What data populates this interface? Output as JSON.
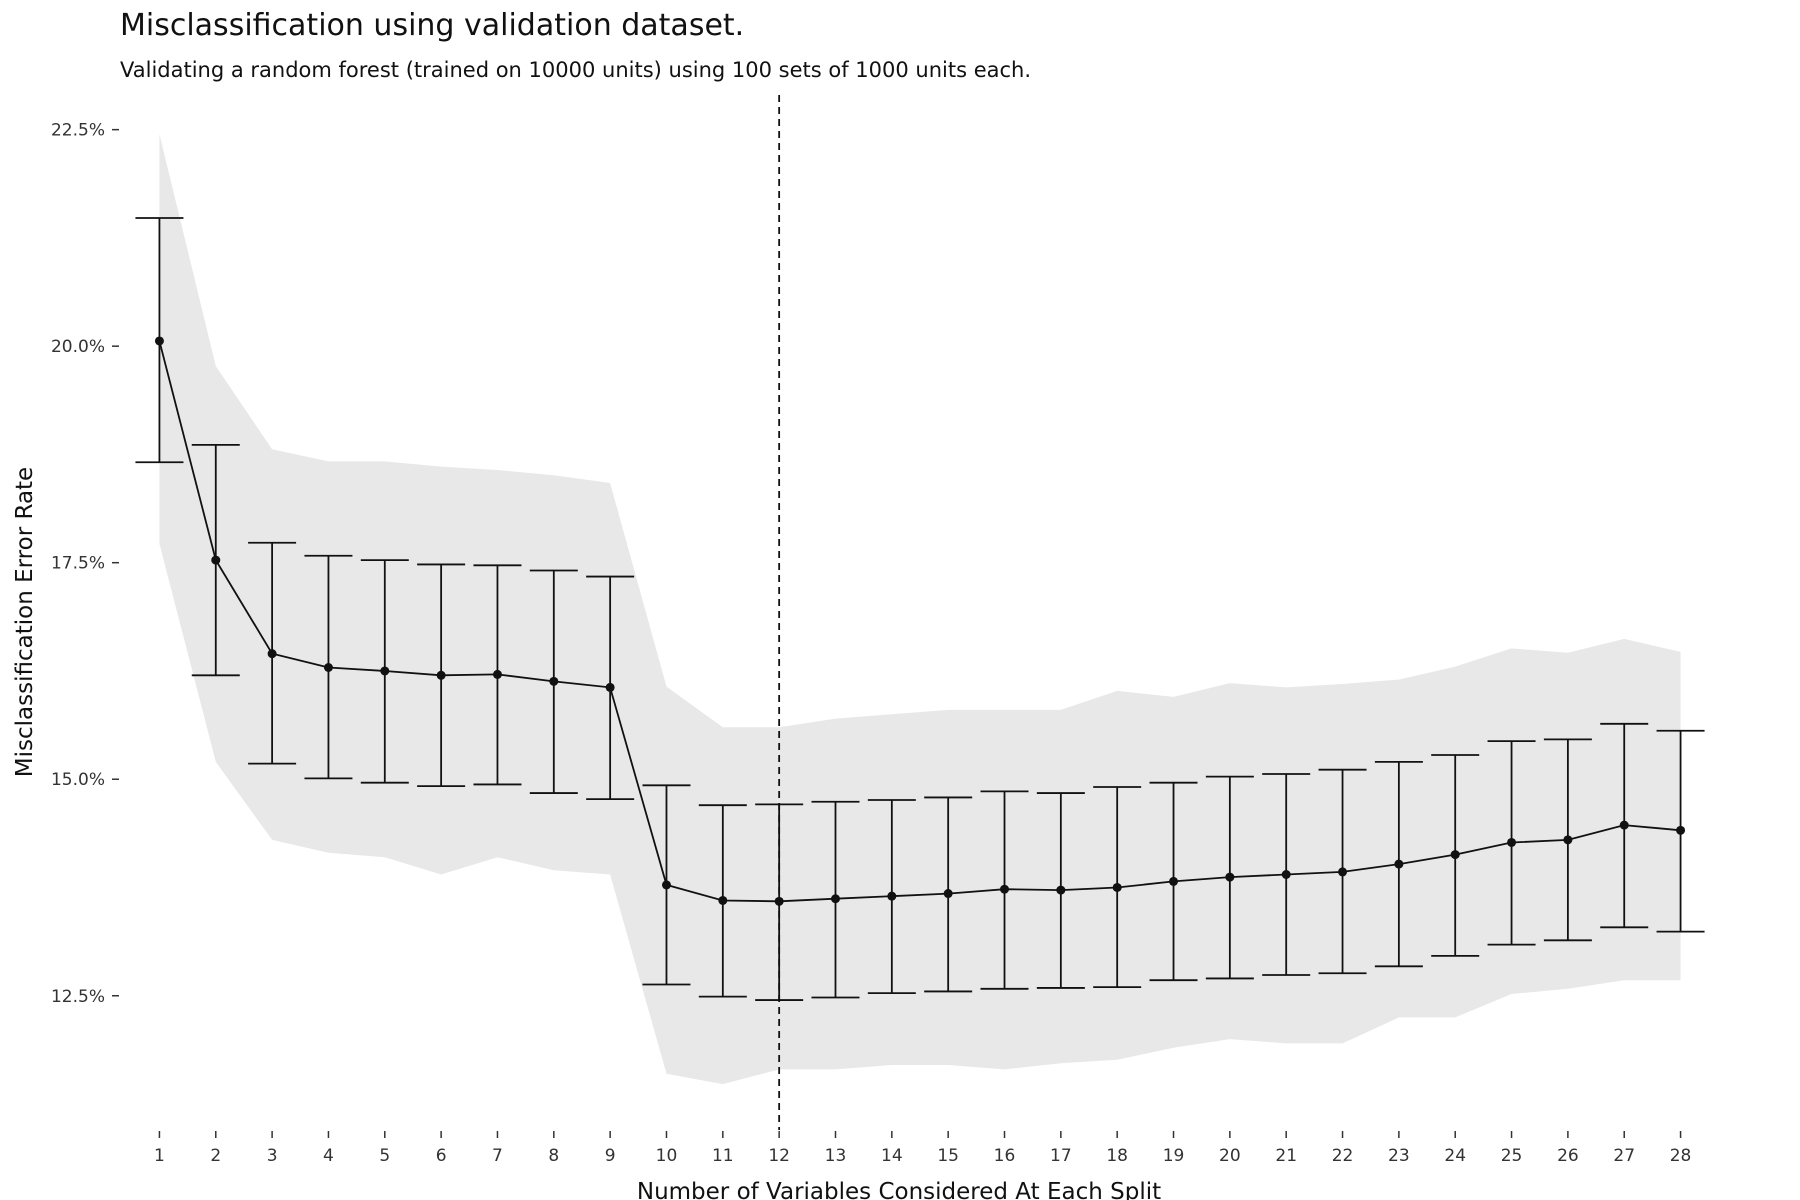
{
  "chart_data": {
    "type": "line",
    "title": "Misclassification using validation dataset.",
    "subtitle": "Validating a random forest (trained on 10000 units) using 100 sets of 1000 units each.",
    "xlabel": "Number of Variables Considered At Each Split",
    "ylabel": "Misclassification Error Rate",
    "x": [
      1,
      2,
      3,
      4,
      5,
      6,
      7,
      8,
      9,
      10,
      11,
      12,
      13,
      14,
      15,
      16,
      17,
      18,
      19,
      20,
      21,
      22,
      23,
      24,
      25,
      26,
      27,
      28
    ],
    "y_tick_values": [
      12.5,
      15.0,
      17.5,
      20.0,
      22.5
    ],
    "y_tick_labels": [
      "12.5%",
      "15.0%",
      "17.5%",
      "20.0%",
      "22.5%"
    ],
    "ylim": [
      10.95,
      22.9
    ],
    "xlim": [
      0.3,
      28.7
    ],
    "series": [
      {
        "mean": [
          20.06,
          17.53,
          16.45,
          16.29,
          16.25,
          16.2,
          16.21,
          16.13,
          16.06,
          13.78,
          13.6,
          13.59,
          13.62,
          13.65,
          13.68,
          13.73,
          13.72,
          13.75,
          13.82,
          13.87,
          13.9,
          13.93,
          14.02,
          14.13,
          14.27,
          14.3,
          14.47,
          14.41
        ],
        "err_lower": [
          18.66,
          16.2,
          15.18,
          15.01,
          14.96,
          14.92,
          14.94,
          14.84,
          14.77,
          12.63,
          12.49,
          12.45,
          12.48,
          12.53,
          12.55,
          12.58,
          12.59,
          12.6,
          12.68,
          12.7,
          12.74,
          12.76,
          12.84,
          12.96,
          13.09,
          13.14,
          13.29,
          13.24
        ],
        "err_upper": [
          21.48,
          18.86,
          17.73,
          17.58,
          17.53,
          17.48,
          17.47,
          17.41,
          17.34,
          14.93,
          14.7,
          14.71,
          14.74,
          14.76,
          14.79,
          14.86,
          14.84,
          14.91,
          14.96,
          15.03,
          15.06,
          15.11,
          15.2,
          15.28,
          15.44,
          15.46,
          15.64,
          15.56
        ],
        "band_lower": [
          17.72,
          15.2,
          14.3,
          14.15,
          14.1,
          13.9,
          14.1,
          13.95,
          13.9,
          11.6,
          11.48,
          11.65,
          11.65,
          11.7,
          11.7,
          11.65,
          11.72,
          11.76,
          11.9,
          12.0,
          11.95,
          11.95,
          12.25,
          12.25,
          12.52,
          12.58,
          12.68,
          12.68
        ],
        "band_upper": [
          22.45,
          19.77,
          18.81,
          18.67,
          18.67,
          18.61,
          18.57,
          18.51,
          18.42,
          16.07,
          15.6,
          15.6,
          15.7,
          15.75,
          15.8,
          15.8,
          15.8,
          16.02,
          15.95,
          16.11,
          16.06,
          16.1,
          16.15,
          16.3,
          16.51,
          16.46,
          16.62,
          16.47
        ]
      }
    ],
    "vline_x": 12,
    "colors": {
      "band": "#e8e8e8",
      "line": "#111111",
      "point": "#111111"
    },
    "grid": false,
    "legend": "none"
  }
}
